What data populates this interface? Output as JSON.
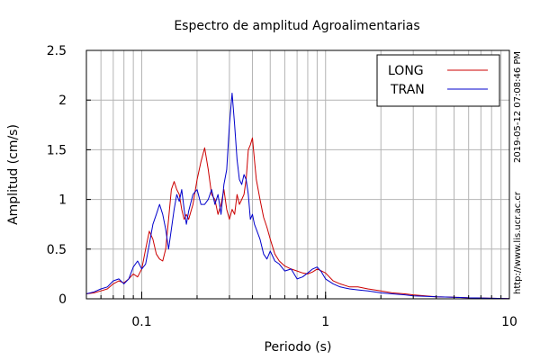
{
  "chart_data": {
    "type": "line",
    "title": "Espectro de amplitud Agroalimentarias",
    "xlabel": "Periodo (s)",
    "ylabel": "Amplitud (cm/s)",
    "x_scale": "log",
    "xlim": [
      0.05,
      10
    ],
    "ylim": [
      0,
      2.5
    ],
    "x_ticks": [
      0.1,
      1,
      10
    ],
    "x_tick_labels": [
      "0.1",
      "1",
      "10"
    ],
    "y_ticks": [
      0,
      0.5,
      1,
      1.5,
      2,
      2.5
    ],
    "y_tick_labels": [
      "0",
      "0.5",
      "1",
      "1.5",
      "2",
      "2.5"
    ],
    "grid": true,
    "legend_position": "top-right",
    "timestamp": "2019-05-12 07:08:46 PM",
    "source_url": "http://www.lis.ucr.ac.cr",
    "series": [
      {
        "name": "LONG",
        "color": "#cc0000",
        "x": [
          0.05,
          0.055,
          0.06,
          0.065,
          0.07,
          0.075,
          0.08,
          0.085,
          0.09,
          0.095,
          0.1,
          0.105,
          0.11,
          0.115,
          0.12,
          0.125,
          0.13,
          0.135,
          0.14,
          0.145,
          0.15,
          0.155,
          0.16,
          0.165,
          0.17,
          0.175,
          0.18,
          0.19,
          0.2,
          0.21,
          0.22,
          0.23,
          0.24,
          0.25,
          0.26,
          0.27,
          0.28,
          0.29,
          0.3,
          0.31,
          0.32,
          0.33,
          0.34,
          0.35,
          0.36,
          0.37,
          0.38,
          0.39,
          0.4,
          0.41,
          0.42,
          0.44,
          0.46,
          0.48,
          0.5,
          0.53,
          0.56,
          0.6,
          0.65,
          0.7,
          0.75,
          0.8,
          0.85,
          0.9,
          0.95,
          1.0,
          1.1,
          1.2,
          1.35,
          1.5,
          1.7,
          2.0,
          2.3,
          2.7,
          3.0,
          3.5,
          4.0,
          5.0,
          6.0,
          7.0,
          8.0,
          10.0
        ],
        "y": [
          0.05,
          0.06,
          0.08,
          0.1,
          0.15,
          0.18,
          0.16,
          0.2,
          0.25,
          0.22,
          0.3,
          0.5,
          0.68,
          0.6,
          0.45,
          0.4,
          0.38,
          0.5,
          0.8,
          1.1,
          1.18,
          1.1,
          1.05,
          0.9,
          0.8,
          0.85,
          0.8,
          0.95,
          1.2,
          1.38,
          1.52,
          1.3,
          1.05,
          1.0,
          0.85,
          0.95,
          1.1,
          0.9,
          0.8,
          0.9,
          0.85,
          1.05,
          0.95,
          1.0,
          1.05,
          1.2,
          1.5,
          1.55,
          1.62,
          1.4,
          1.2,
          1.0,
          0.82,
          0.72,
          0.6,
          0.45,
          0.38,
          0.33,
          0.3,
          0.28,
          0.26,
          0.25,
          0.27,
          0.3,
          0.28,
          0.26,
          0.18,
          0.15,
          0.12,
          0.12,
          0.1,
          0.08,
          0.06,
          0.05,
          0.04,
          0.03,
          0.02,
          0.015,
          0.01,
          0.008,
          0.005,
          0.003
        ]
      },
      {
        "name": "TRAN",
        "color": "#0000cc",
        "x": [
          0.05,
          0.055,
          0.06,
          0.065,
          0.07,
          0.075,
          0.08,
          0.085,
          0.09,
          0.095,
          0.1,
          0.105,
          0.11,
          0.115,
          0.12,
          0.125,
          0.13,
          0.135,
          0.14,
          0.145,
          0.15,
          0.155,
          0.16,
          0.165,
          0.17,
          0.175,
          0.18,
          0.19,
          0.2,
          0.21,
          0.22,
          0.23,
          0.24,
          0.25,
          0.26,
          0.27,
          0.28,
          0.29,
          0.3,
          0.31,
          0.32,
          0.33,
          0.34,
          0.35,
          0.36,
          0.37,
          0.38,
          0.39,
          0.4,
          0.41,
          0.42,
          0.44,
          0.46,
          0.48,
          0.5,
          0.53,
          0.56,
          0.6,
          0.65,
          0.7,
          0.75,
          0.8,
          0.85,
          0.9,
          0.95,
          1.0,
          1.1,
          1.2,
          1.35,
          1.5,
          1.7,
          2.0,
          2.3,
          2.7,
          3.0,
          3.5,
          4.0,
          5.0,
          6.0,
          7.0,
          8.0,
          10.0
        ],
        "y": [
          0.05,
          0.07,
          0.1,
          0.12,
          0.18,
          0.2,
          0.15,
          0.2,
          0.32,
          0.38,
          0.3,
          0.35,
          0.55,
          0.75,
          0.85,
          0.95,
          0.85,
          0.7,
          0.5,
          0.7,
          0.9,
          1.05,
          0.98,
          1.1,
          0.9,
          0.75,
          0.88,
          1.05,
          1.1,
          0.95,
          0.95,
          1.0,
          1.1,
          0.95,
          1.05,
          0.85,
          1.15,
          1.3,
          1.75,
          2.07,
          1.75,
          1.4,
          1.2,
          1.15,
          1.25,
          1.2,
          1.05,
          0.8,
          0.85,
          0.75,
          0.7,
          0.6,
          0.45,
          0.4,
          0.48,
          0.38,
          0.35,
          0.28,
          0.3,
          0.2,
          0.22,
          0.26,
          0.3,
          0.32,
          0.27,
          0.2,
          0.15,
          0.12,
          0.1,
          0.09,
          0.08,
          0.06,
          0.05,
          0.04,
          0.03,
          0.025,
          0.02,
          0.015,
          0.01,
          0.008,
          0.005,
          0.003
        ]
      }
    ]
  }
}
